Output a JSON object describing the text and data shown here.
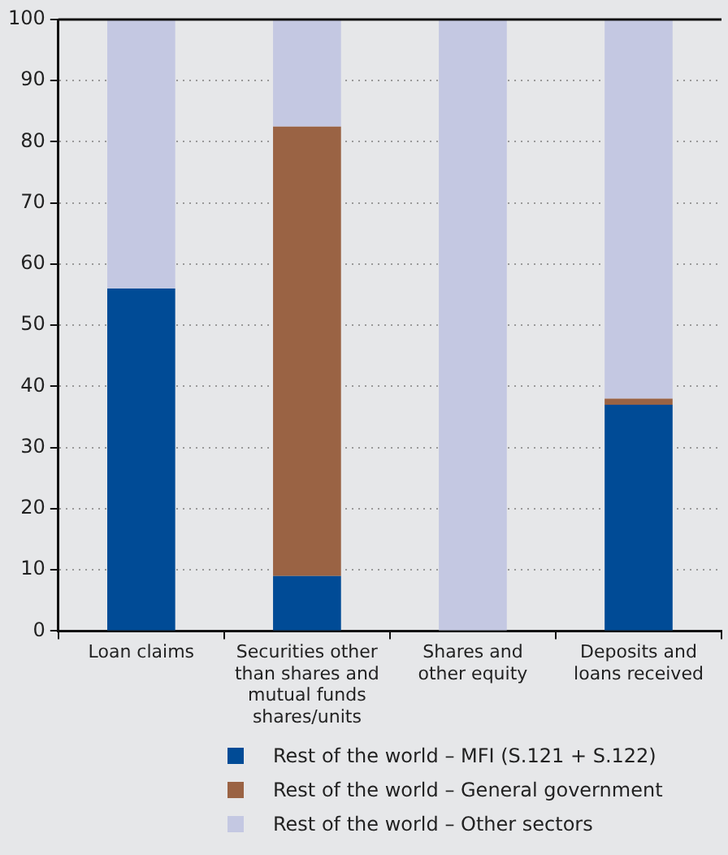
{
  "chart_data": {
    "type": "bar",
    "stacked": true,
    "categories": [
      "Loan claims",
      "Securities other than shares and mutual funds shares/units",
      "Shares and other equity",
      "Deposits and loans received"
    ],
    "series": [
      {
        "name": "Rest of the world – MFI (S.121 + S.122)",
        "color": "#004b96",
        "values": [
          56,
          9,
          0,
          37
        ]
      },
      {
        "name": "Rest of the world – General government",
        "color": "#9a6344",
        "values": [
          0,
          73.5,
          0,
          1
        ]
      },
      {
        "name": "Rest of the world – Other sectors",
        "color": "#c4c8e2",
        "values": [
          44,
          17.5,
          100,
          62
        ]
      }
    ],
    "ylim": [
      0,
      100
    ],
    "yticks": [
      0,
      10,
      20,
      30,
      40,
      50,
      60,
      70,
      80,
      90,
      100
    ],
    "grid": "y",
    "legend": "bottom"
  }
}
